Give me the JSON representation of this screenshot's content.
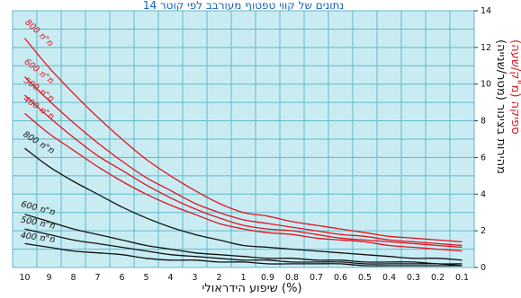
{
  "title": "נתונים של קווי טפטוף מעורבב לפי קוטר 14",
  "chart_data": {
    "type": "line",
    "xlabel": "שיפוע הידראולי (%)",
    "ylabel_primary": "מהירות בצינור (מטר/שנייה)",
    "ylabel_secondary": "ספיקה (מ\"ק/שעה)",
    "x_ticks": [
      "10",
      "9",
      "8",
      "7",
      "6",
      "5",
      "4",
      "3",
      "2",
      "1",
      "0.9",
      "0.8",
      "0.7",
      "0.6",
      "0.5",
      "0.4",
      "0.3",
      "0.2",
      "0.1"
    ],
    "y_ticks": [
      "0",
      "2",
      "4",
      "6",
      "8",
      "10",
      "12",
      "14"
    ],
    "ylim": [
      0,
      14
    ],
    "grid": true,
    "x_direction": "right-to-left",
    "colors": {
      "background": "#c9ecf3",
      "grid": "#5fbac8",
      "red": "#e0141e",
      "black": "#111111",
      "title": "#1560c0"
    },
    "series": [
      {
        "name": "800 מ\"מ",
        "color": "red",
        "values": [
          12.5,
          10.9,
          9.5,
          8.2,
          7.0,
          5.9,
          5.0,
          4.2,
          3.5,
          3.0,
          2.8,
          2.5,
          2.3,
          2.1,
          1.9,
          1.7,
          1.6,
          1.5,
          1.4
        ]
      },
      {
        "name": "600 מ\"מ",
        "color": "red",
        "values": [
          10.4,
          9.1,
          7.9,
          6.8,
          5.8,
          4.9,
          4.2,
          3.5,
          3.0,
          2.6,
          2.4,
          2.2,
          2.0,
          1.8,
          1.7,
          1.5,
          1.4,
          1.3,
          1.2
        ]
      },
      {
        "name": "500 מ\"מ",
        "color": "red",
        "values": [
          9.4,
          8.2,
          7.1,
          6.1,
          5.3,
          4.5,
          3.8,
          3.2,
          2.7,
          2.3,
          2.1,
          2.0,
          1.8,
          1.6,
          1.5,
          1.4,
          1.3,
          1.2,
          1.1
        ]
      },
      {
        "name": "400 מ\"מ",
        "color": "red",
        "values": [
          8.4,
          7.3,
          6.4,
          5.5,
          4.7,
          4.0,
          3.4,
          2.9,
          2.4,
          2.1,
          1.9,
          1.8,
          1.6,
          1.5,
          1.4,
          1.2,
          1.1,
          1.0,
          0.9
        ]
      },
      {
        "name": "800 מ\"מ",
        "color": "black",
        "values": [
          6.5,
          5.5,
          4.7,
          4.0,
          3.3,
          2.7,
          2.2,
          1.8,
          1.5,
          1.2,
          1.1,
          1.0,
          0.9,
          0.8,
          0.7,
          0.6,
          0.5,
          0.5,
          0.4
        ]
      },
      {
        "name": "600 מ\"מ",
        "color": "black",
        "values": [
          2.9,
          2.5,
          2.1,
          1.8,
          1.5,
          1.2,
          1.0,
          0.8,
          0.7,
          0.6,
          0.5,
          0.5,
          0.4,
          0.4,
          0.3,
          0.3,
          0.3,
          0.2,
          0.2
        ]
      },
      {
        "name": "500 מ\"מ",
        "color": "black",
        "values": [
          2.1,
          1.8,
          1.5,
          1.3,
          1.1,
          0.9,
          0.7,
          0.6,
          0.5,
          0.4,
          0.4,
          0.3,
          0.3,
          0.3,
          0.2,
          0.2,
          0.2,
          0.2,
          0.1
        ]
      },
      {
        "name": "400 מ\"מ",
        "color": "black",
        "values": [
          1.3,
          1.1,
          0.9,
          0.8,
          0.7,
          0.5,
          0.4,
          0.4,
          0.3,
          0.3,
          0.2,
          0.2,
          0.2,
          0.2,
          0.1,
          0.1,
          0.1,
          0.1,
          0.1
        ]
      }
    ]
  }
}
